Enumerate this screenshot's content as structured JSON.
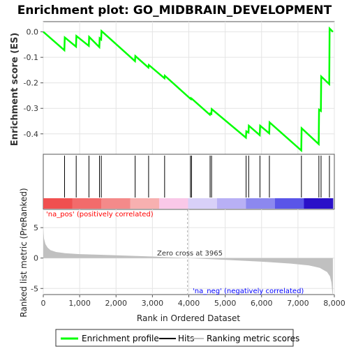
{
  "title": "Enrichment plot: GO_MIDBRAIN_DEVELOPMENT",
  "colors": {
    "profile": "#00ff00",
    "hits": "#000000",
    "metric_fill": "#c0c0c0",
    "zero_line": "#aaaaaa",
    "pos_text": "#ff0000",
    "neg_text": "#0000ff"
  },
  "chart_data": [
    {
      "type": "line",
      "name": "enrichment-profile",
      "ylabel": "Enrichment score (ES)",
      "ylim": [
        -0.48,
        0.04
      ],
      "yticks": [
        0.0,
        -0.1,
        -0.2,
        -0.3,
        -0.4
      ],
      "ytick_labels": [
        "0.0",
        "-0.1",
        "-0.2",
        "-0.3",
        "-0.4"
      ],
      "xlim": [
        0,
        8000
      ],
      "grid": true,
      "x": [
        0,
        580,
        590,
        900,
        910,
        1250,
        1260,
        1540,
        1550,
        1590,
        1600,
        2520,
        2530,
        2890,
        2900,
        3330,
        3340,
        4040,
        4050,
        4070,
        4080,
        4580,
        4590,
        4620,
        4630,
        5570,
        5580,
        5640,
        5650,
        5950,
        5960,
        6210,
        6220,
        7090,
        7100,
        7570,
        7580,
        7630,
        7640,
        7860,
        7870,
        7960
      ],
      "values": [
        0.0,
        -0.072,
        -0.022,
        -0.058,
        -0.016,
        -0.055,
        -0.02,
        -0.06,
        -0.025,
        -0.03,
        0.003,
        -0.115,
        -0.095,
        -0.14,
        -0.13,
        -0.182,
        -0.172,
        -0.262,
        -0.26,
        -0.264,
        -0.262,
        -0.325,
        -0.32,
        -0.322,
        -0.303,
        -0.415,
        -0.39,
        -0.395,
        -0.368,
        -0.405,
        -0.368,
        -0.398,
        -0.355,
        -0.465,
        -0.378,
        -0.44,
        -0.305,
        -0.31,
        -0.175,
        -0.205,
        0.013,
        0.0
      ]
    },
    {
      "type": "scatter",
      "name": "hits",
      "x": [
        585,
        905,
        1255,
        1545,
        1595,
        2525,
        2895,
        3335,
        4045,
        4075,
        4585,
        4625,
        5575,
        5645,
        5955,
        6215,
        7095,
        7575,
        7635,
        7865
      ]
    },
    {
      "type": "area",
      "name": "ranking-metric-scores",
      "xlabel": "Rank in Ordered Dataset",
      "ylabel": "Ranked list metric (PreRanked)",
      "xlim": [
        0,
        8000
      ],
      "ylim": [
        -6,
        8
      ],
      "xticks": [
        0,
        1000,
        2000,
        3000,
        4000,
        5000,
        6000,
        7000,
        8000
      ],
      "xtick_labels": [
        "0",
        "1,000",
        "2,000",
        "3,000",
        "4,000",
        "5,000",
        "6,000",
        "7,000",
        "8,000"
      ],
      "yticks": [
        -5,
        0,
        5
      ],
      "ytick_labels": [
        "-5",
        "0",
        "5"
      ],
      "x": [
        0,
        20,
        60,
        120,
        200,
        350,
        600,
        1000,
        1500,
        2000,
        3000,
        3965,
        5000,
        6000,
        6800,
        7300,
        7600,
        7800,
        7880,
        7920,
        7950,
        7960
      ],
      "values": [
        5.0,
        3.2,
        2.3,
        1.7,
        1.3,
        1.0,
        0.8,
        0.65,
        0.55,
        0.45,
        0.25,
        0.0,
        -0.3,
        -0.6,
        -0.9,
        -1.2,
        -1.6,
        -2.3,
        -3.0,
        -4.0,
        -6.0,
        -6.0
      ],
      "zero_cross_label": "Zero cross at 3965",
      "pos_label": "'na_pos' (positively correlated)",
      "neg_label": "'na_neg' (negatively correlated)"
    }
  ],
  "ranked_bar_colors": [
    "#f05050",
    "#f26b6b",
    "#f48a8a",
    "#f7b0b0",
    "#f9c8e8",
    "#d8d0f8",
    "#b8b0f5",
    "#8c88ef",
    "#5a55e8",
    "#2a10c8"
  ],
  "legend": [
    {
      "label": "Enrichment profile",
      "color": "#00ff00"
    },
    {
      "label": "Hits",
      "color": "#000000"
    },
    {
      "label": "Ranking metric scores",
      "color": "#c0c0c0"
    }
  ]
}
